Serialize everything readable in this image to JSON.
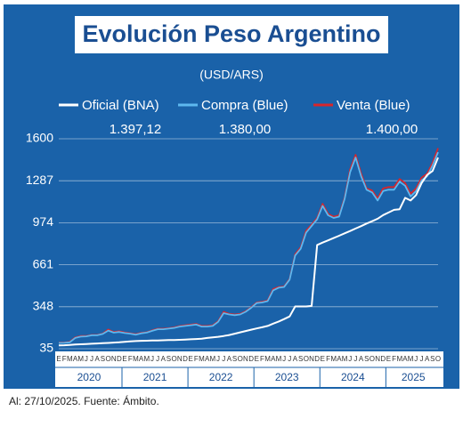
{
  "chart_data": {
    "type": "line",
    "title": "Evolución Peso Argentino",
    "subtitle": "(USD/ARS)",
    "annotations": [
      "1.397,12",
      "1.380,00",
      "1.400,00"
    ],
    "source": "Al: 27/10/2025. Fuente: Ámbito.",
    "categories": [
      "E",
      "F",
      "M",
      "A",
      "M",
      "J",
      "J",
      "A",
      "S",
      "O",
      "N",
      "D",
      "E",
      "F",
      "M",
      "A",
      "M",
      "J",
      "J",
      "A",
      "S",
      "O",
      "N",
      "D",
      "E",
      "F",
      "M",
      "A",
      "M",
      "J",
      "J",
      "A",
      "S",
      "O",
      "N",
      "D",
      "E",
      "F",
      "M",
      "A",
      "M",
      "J",
      "J",
      "A",
      "S",
      "O",
      "N",
      "D",
      "E",
      "F",
      "M",
      "A",
      "M",
      "J",
      "J",
      "A",
      "S",
      "O",
      "N",
      "D",
      "E",
      "F",
      "M",
      "A",
      "M",
      "J",
      "J",
      "A",
      "S",
      "O"
    ],
    "year_labels": [
      "2020",
      "2021",
      "2022",
      "2023",
      "2024",
      "2025"
    ],
    "series": [
      {
        "name": "Venta (Blue)",
        "color": "#d8262b",
        "values": [
          80,
          81,
          86,
          120,
          130,
          130,
          138,
          138,
          148,
          178,
          160,
          165,
          156,
          150,
          144,
          154,
          158,
          172,
          184,
          184,
          188,
          194,
          204,
          210,
          215,
          220,
          205,
          205,
          210,
          240,
          310,
          295,
          290,
          295,
          315,
          345,
          380,
          385,
          395,
          480,
          495,
          500,
          555,
          740,
          790,
          915,
          960,
          1010,
          1115,
          1040,
          1020,
          1030,
          1160,
          1370,
          1480,
          1340,
          1230,
          1215,
          1155,
          1230,
          1240,
          1240,
          1300,
          1270,
          1190,
          1230,
          1310,
          1340,
          1420,
          1530
        ]
      },
      {
        "name": "Compra (Blue)",
        "color": "#5db8ef",
        "values": [
          78,
          79,
          83,
          115,
          125,
          127,
          135,
          135,
          145,
          170,
          155,
          160,
          152,
          147,
          140,
          150,
          155,
          168,
          180,
          180,
          185,
          190,
          200,
          205,
          210,
          215,
          200,
          200,
          205,
          235,
          300,
          290,
          285,
          290,
          310,
          340,
          375,
          380,
          390,
          470,
          490,
          495,
          550,
          730,
          780,
          900,
          950,
          1000,
          1100,
          1030,
          1010,
          1020,
          1150,
          1350,
          1460,
          1320,
          1220,
          1200,
          1140,
          1210,
          1220,
          1220,
          1280,
          1250,
          1170,
          1210,
          1290,
          1320,
          1400,
          1500
        ]
      },
      {
        "name": "Oficial (BNA)",
        "color": "#ffffff",
        "values": [
          60,
          61,
          63,
          66,
          68,
          70,
          72,
          74,
          76,
          78,
          81,
          83,
          87,
          90,
          92,
          94,
          95,
          96,
          97,
          98,
          99,
          100,
          101,
          103,
          105,
          107,
          110,
          115,
          119,
          124,
          130,
          137,
          147,
          157,
          167,
          177,
          186,
          195,
          205,
          222,
          238,
          256,
          276,
          350,
          350,
          350,
          354,
          808,
          826,
          843,
          860,
          877,
          895,
          912,
          931,
          949,
          968,
          985,
          1004,
          1031,
          1050,
          1070,
          1075,
          1160,
          1140,
          1180,
          1270,
          1330,
          1360,
          1460
        ]
      }
    ],
    "ylim": [
      35,
      1600
    ],
    "yticks": [
      35,
      348,
      661,
      974,
      1287,
      1600
    ],
    "grid": true
  }
}
